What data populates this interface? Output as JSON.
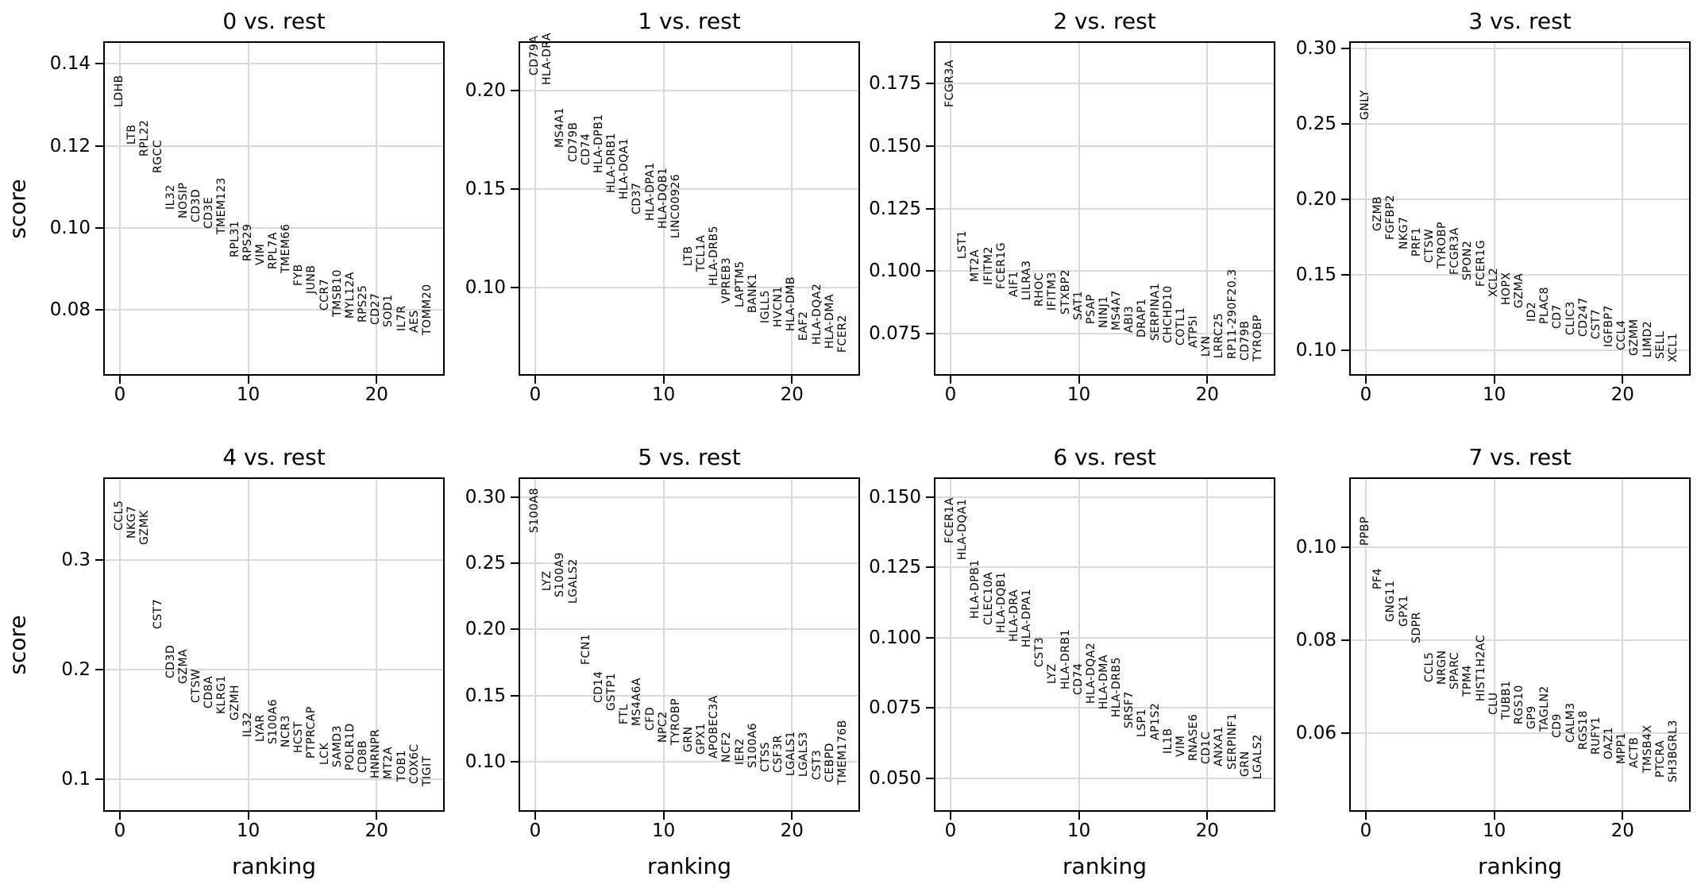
{
  "figure": {
    "background_color": "#ffffff",
    "axis_color": "#000000",
    "grid_color": "#d9d9d9",
    "text_color": "#000000",
    "ylabel": "score",
    "xlabel": "ranking",
    "xtick_labels": [
      "0",
      "10",
      "20"
    ]
  },
  "chart_data": [
    {
      "type": "scatter",
      "title": "0 vs. rest",
      "xlabel": "ranking",
      "ylabel": "score",
      "xlim": [
        -1.3,
        25.3
      ],
      "ylim": [
        0.064,
        0.1455
      ],
      "xticks": [
        0,
        10,
        20
      ],
      "yticks": [
        0.08,
        0.1,
        0.12,
        0.14
      ],
      "ytick_labels": [
        "0.08",
        "0.10",
        "0.12",
        "0.14"
      ],
      "grid": true,
      "categories": [
        "LDHB",
        "LTB",
        "RPL22",
        "RGCC",
        "IL32",
        "NOSIP",
        "CD3D",
        "CD3E",
        "TMEM123",
        "RPL31",
        "RPS29",
        "VIM",
        "RPL7A",
        "TMEM66",
        "FYB",
        "JUNB",
        "CCR7",
        "TMSB10",
        "MYL12A",
        "RPS25",
        "CD27",
        "SOD1",
        "IL7R",
        "AES",
        "TOMM20"
      ],
      "values": [
        0.129,
        0.12,
        0.117,
        0.113,
        0.104,
        0.102,
        0.101,
        0.0995,
        0.098,
        0.0925,
        0.0915,
        0.0905,
        0.0895,
        0.0885,
        0.0855,
        0.0835,
        0.0795,
        0.078,
        0.0775,
        0.0765,
        0.076,
        0.0755,
        0.0745,
        0.074,
        0.0735
      ]
    },
    {
      "type": "scatter",
      "title": "1 vs. rest",
      "xlabel": "ranking",
      "ylabel": "score",
      "xlim": [
        -1.3,
        25.3
      ],
      "ylim": [
        0.055,
        0.225
      ],
      "xticks": [
        0,
        10,
        20
      ],
      "yticks": [
        0.1,
        0.15,
        0.2
      ],
      "ytick_labels": [
        "0.10",
        "0.15",
        "0.20"
      ],
      "grid": true,
      "categories": [
        "CD79A",
        "HLA-DRA",
        "MS4A1",
        "CD79B",
        "CD74",
        "HLA-DPB1",
        "HLA-DRB1",
        "HLA-DQA1",
        "CD37",
        "HLA-DPA1",
        "HLA-DQB1",
        "LINC00926",
        "LTB",
        "TCL1A",
        "HLA-DRB5",
        "VPREB3",
        "LAPTM5",
        "BANK1",
        "IGLL5",
        "HVCN1",
        "HLA-DMB",
        "EAF2",
        "HLA-DQA2",
        "HLA-DMA",
        "FCER2"
      ],
      "values": [
        0.207,
        0.202,
        0.17,
        0.163,
        0.161,
        0.157,
        0.147,
        0.144,
        0.136,
        0.133,
        0.129,
        0.124,
        0.11,
        0.107,
        0.1,
        0.091,
        0.089,
        0.086,
        0.081,
        0.079,
        0.077,
        0.072,
        0.07,
        0.068,
        0.066
      ]
    },
    {
      "type": "scatter",
      "title": "2 vs. rest",
      "xlabel": "ranking",
      "ylabel": "score",
      "xlim": [
        -1.3,
        25.3
      ],
      "ylim": [
        0.058,
        0.192
      ],
      "xticks": [
        0,
        10,
        20
      ],
      "yticks": [
        0.075,
        0.1,
        0.125,
        0.15,
        0.175
      ],
      "ytick_labels": [
        "0.075",
        "0.100",
        "0.125",
        "0.150",
        "0.175"
      ],
      "grid": true,
      "categories": [
        "FCGR3A",
        "LST1",
        "MT2A",
        "IFITM2",
        "FCER1G",
        "AIF1",
        "LILRA3",
        "RHOC",
        "IFITM3",
        "STXBP2",
        "SAT1",
        "PSAP",
        "NINJ1",
        "MS4A7",
        "ABI3",
        "DRAP1",
        "SERPINA1",
        "CHCHD10",
        "COTL1",
        "ATP5I",
        "LYN",
        "LRRC25",
        "RP11-290F20.3",
        "CD79B",
        "TYROBP"
      ],
      "values": [
        0.165,
        0.104,
        0.095,
        0.0935,
        0.092,
        0.089,
        0.0875,
        0.085,
        0.0835,
        0.082,
        0.0795,
        0.078,
        0.0765,
        0.0755,
        0.0745,
        0.0725,
        0.0715,
        0.0705,
        0.0695,
        0.0685,
        0.065,
        0.0645,
        0.064,
        0.0635,
        0.063
      ]
    },
    {
      "type": "scatter",
      "title": "3 vs. rest",
      "xlabel": "ranking",
      "ylabel": "score",
      "xlim": [
        -1.3,
        25.3
      ],
      "ylim": [
        0.083,
        0.305
      ],
      "xticks": [
        0,
        10,
        20
      ],
      "yticks": [
        0.1,
        0.15,
        0.2,
        0.25,
        0.3
      ],
      "ytick_labels": [
        "0.10",
        "0.15",
        "0.20",
        "0.25",
        "0.30"
      ],
      "grid": true,
      "categories": [
        "GNLY",
        "GZMB",
        "FGFBP2",
        "NKG7",
        "PRF1",
        "CTSW",
        "TYROBP",
        "FCGR3A",
        "SPON2",
        "FCER1G",
        "XCL2",
        "HOPX",
        "GZMA",
        "ID2",
        "PLAC8",
        "CD7",
        "CLIC3",
        "CD247",
        "CST7",
        "IGFBP7",
        "CCL4",
        "GZMM",
        "LIMD2",
        "SELL",
        "XCL1"
      ],
      "values": [
        0.252,
        0.178,
        0.172,
        0.166,
        0.161,
        0.157,
        0.153,
        0.149,
        0.145,
        0.141,
        0.134,
        0.129,
        0.127,
        0.118,
        0.116,
        0.113,
        0.109,
        0.108,
        0.106,
        0.101,
        0.099,
        0.095,
        0.094,
        0.093,
        0.091
      ]
    },
    {
      "type": "scatter",
      "title": "4 vs. rest",
      "xlabel": "ranking",
      "ylabel": "score",
      "xlim": [
        -1.3,
        25.3
      ],
      "ylim": [
        0.07,
        0.375
      ],
      "xticks": [
        0,
        10,
        20
      ],
      "yticks": [
        0.1,
        0.2,
        0.3
      ],
      "ytick_labels": [
        "0.1",
        "0.2",
        "0.3"
      ],
      "grid": true,
      "categories": [
        "CCL5",
        "NKG7",
        "GZMK",
        "CST7",
        "CD3D",
        "GZMA",
        "CTSW",
        "CD8A",
        "KLRG1",
        "GZMH",
        "IL32",
        "LYAR",
        "S100A6",
        "NCR3",
        "HCST",
        "PTPRCAP",
        "LCK",
        "SAMD3",
        "POLR1D",
        "CD8B",
        "HNRNPR",
        "MT2A",
        "TOB1",
        "COX6C",
        "TIGIT"
      ],
      "values": [
        0.325,
        0.318,
        0.312,
        0.235,
        0.19,
        0.185,
        0.168,
        0.163,
        0.158,
        0.152,
        0.137,
        0.132,
        0.13,
        0.127,
        0.122,
        0.117,
        0.111,
        0.109,
        0.106,
        0.104,
        0.099,
        0.098,
        0.096,
        0.094,
        0.092
      ]
    },
    {
      "type": "scatter",
      "title": "5 vs. rest",
      "xlabel": "ranking",
      "ylabel": "score",
      "xlim": [
        -1.3,
        25.3
      ],
      "ylim": [
        0.062,
        0.315
      ],
      "xticks": [
        0,
        10,
        20
      ],
      "yticks": [
        0.1,
        0.15,
        0.2,
        0.25,
        0.3
      ],
      "ytick_labels": [
        "0.10",
        "0.15",
        "0.20",
        "0.25",
        "0.30"
      ],
      "grid": true,
      "categories": [
        "S100A8",
        "LYZ",
        "S100A9",
        "LGALS2",
        "FCN1",
        "CD14",
        "GSTP1",
        "FTL",
        "MS4A6A",
        "CFD",
        "NPC2",
        "TYROBP",
        "GRN",
        "GPX1",
        "APOBEC3A",
        "NCF2",
        "IER2",
        "S100A6",
        "CTSS",
        "CSF3R",
        "LGALS1",
        "LGALS3",
        "CST3",
        "CEBPD",
        "TMEM176B"
      ],
      "values": [
        0.272,
        0.228,
        0.223,
        0.218,
        0.172,
        0.143,
        0.137,
        0.127,
        0.126,
        0.122,
        0.113,
        0.111,
        0.106,
        0.104,
        0.101,
        0.098,
        0.096,
        0.094,
        0.091,
        0.09,
        0.088,
        0.087,
        0.085,
        0.083,
        0.081
      ]
    },
    {
      "type": "scatter",
      "title": "6 vs. rest",
      "xlabel": "ranking",
      "ylabel": "score",
      "xlim": [
        -1.3,
        25.3
      ],
      "ylim": [
        0.038,
        0.157
      ],
      "xticks": [
        0,
        10,
        20
      ],
      "yticks": [
        0.05,
        0.075,
        0.1,
        0.125,
        0.15
      ],
      "ytick_labels": [
        "0.050",
        "0.075",
        "0.100",
        "0.125",
        "0.150"
      ],
      "grid": true,
      "categories": [
        "FCER1A",
        "HLA-DQA1",
        "HLA-DPB1",
        "CLEC10A",
        "HLA-DQB1",
        "HLA-DRA",
        "HLA-DPA1",
        "CST3",
        "LYZ",
        "HLA-DRB1",
        "CD74",
        "HLA-DQA2",
        "HLA-DMA",
        "HLA-DRB5",
        "SRSF7",
        "LSP1",
        "AP1S2",
        "IL1B",
        "VIM",
        "RNASE6",
        "CD1C",
        "ANXA1",
        "SERPINF1",
        "GRN",
        "LGALS2"
      ],
      "values": [
        0.133,
        0.127,
        0.106,
        0.104,
        0.101,
        0.098,
        0.096,
        0.089,
        0.083,
        0.081,
        0.079,
        0.076,
        0.074,
        0.071,
        0.067,
        0.064,
        0.063,
        0.058,
        0.057,
        0.0555,
        0.0545,
        0.0535,
        0.0525,
        0.05,
        0.049
      ]
    },
    {
      "type": "scatter",
      "title": "7 vs. rest",
      "xlabel": "ranking",
      "ylabel": "score",
      "xlim": [
        -1.3,
        25.3
      ],
      "ylim": [
        0.043,
        0.115
      ],
      "xticks": [
        0,
        10,
        20
      ],
      "yticks": [
        0.06,
        0.08,
        0.1
      ],
      "ytick_labels": [
        "0.06",
        "0.08",
        "0.10"
      ],
      "grid": true,
      "categories": [
        "PPBP",
        "PF4",
        "GNG11",
        "GPX1",
        "SDPR",
        "CCL5",
        "NRGN",
        "SPARC",
        "TPM4",
        "HIST1H2AC",
        "CLU",
        "TUBB1",
        "RGS10",
        "GP9",
        "TAGLN2",
        "CD9",
        "CALM3",
        "RGS18",
        "RUFY1",
        "OAZ1",
        "MPP1",
        "ACTB",
        "TMSB4X",
        "PTCRA",
        "SH3BGRL3"
      ],
      "values": [
        0.1,
        0.0905,
        0.0835,
        0.0825,
        0.079,
        0.0705,
        0.07,
        0.069,
        0.0675,
        0.0665,
        0.0635,
        0.0625,
        0.0615,
        0.0605,
        0.06,
        0.0585,
        0.0575,
        0.056,
        0.055,
        0.054,
        0.053,
        0.052,
        0.051,
        0.05,
        0.049
      ]
    }
  ]
}
